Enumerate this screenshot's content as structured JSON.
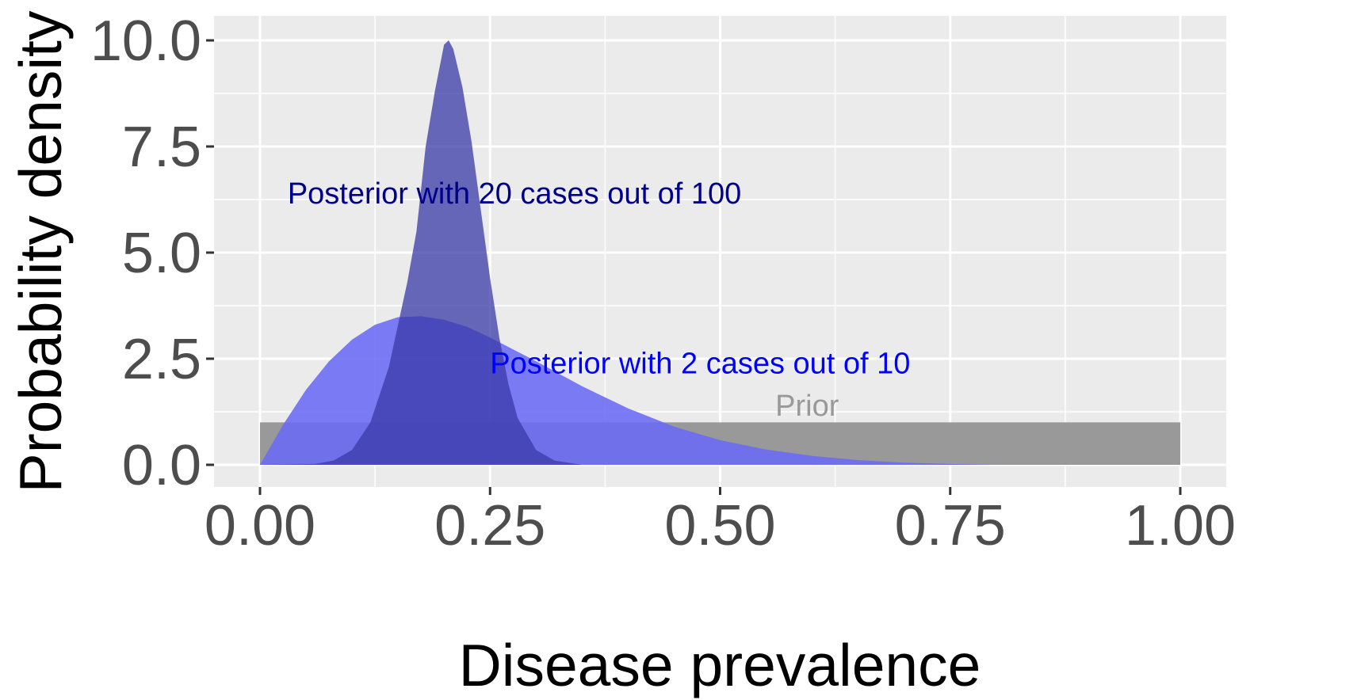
{
  "chart_data": {
    "type": "area",
    "xlabel": "Disease prevalence",
    "ylabel": "Probability density",
    "xlim": [
      0,
      1
    ],
    "ylim": [
      0,
      10
    ],
    "x_ticks": [
      "0.00",
      "0.25",
      "0.50",
      "0.75",
      "1.00"
    ],
    "y_ticks": [
      "0.0",
      "2.5",
      "5.0",
      "7.5",
      "10.0"
    ],
    "grid": true,
    "background": "#ebebeb",
    "series": [
      {
        "label": "Prior",
        "color": "#999999",
        "points": [
          [
            0.0,
            1.0
          ],
          [
            1.0,
            1.0
          ]
        ]
      },
      {
        "label": "Posterior with 2 cases out of 10",
        "color": "#6a6af5",
        "points": [
          [
            0.0,
            0.0
          ],
          [
            0.025,
            0.94
          ],
          [
            0.05,
            1.77
          ],
          [
            0.075,
            2.44
          ],
          [
            0.1,
            2.95
          ],
          [
            0.125,
            3.3
          ],
          [
            0.15,
            3.48
          ],
          [
            0.175,
            3.5
          ],
          [
            0.2,
            3.42
          ],
          [
            0.225,
            3.25
          ],
          [
            0.25,
            3.0
          ],
          [
            0.3,
            2.44
          ],
          [
            0.35,
            1.85
          ],
          [
            0.4,
            1.33
          ],
          [
            0.45,
            0.9
          ],
          [
            0.5,
            0.58
          ],
          [
            0.55,
            0.36
          ],
          [
            0.6,
            0.21
          ],
          [
            0.65,
            0.11
          ],
          [
            0.7,
            0.05
          ],
          [
            0.75,
            0.02
          ],
          [
            0.8,
            0.0
          ],
          [
            1.0,
            0.0
          ]
        ]
      },
      {
        "label": "Posterior with 20 cases out of 100",
        "color": "#3a3aa8",
        "points": [
          [
            0.0,
            0.0
          ],
          [
            0.06,
            0.02
          ],
          [
            0.08,
            0.1
          ],
          [
            0.1,
            0.35
          ],
          [
            0.12,
            1.0
          ],
          [
            0.14,
            2.3
          ],
          [
            0.16,
            4.3
          ],
          [
            0.17,
            5.5
          ],
          [
            0.18,
            7.5
          ],
          [
            0.19,
            8.8
          ],
          [
            0.2,
            9.9
          ],
          [
            0.205,
            10.0
          ],
          [
            0.21,
            9.8
          ],
          [
            0.22,
            8.9
          ],
          [
            0.23,
            7.6
          ],
          [
            0.24,
            6.0
          ],
          [
            0.25,
            4.4
          ],
          [
            0.26,
            3.0
          ],
          [
            0.27,
            1.9
          ],
          [
            0.28,
            1.1
          ],
          [
            0.3,
            0.35
          ],
          [
            0.32,
            0.1
          ],
          [
            0.35,
            0.0
          ],
          [
            1.0,
            0.0
          ]
        ]
      }
    ],
    "annotations": [
      {
        "text": "Posterior with 20 cases out of 100",
        "x": 0.03,
        "y": 6.4,
        "color": "#00008b"
      },
      {
        "text": "Posterior with 2 cases out of 10",
        "x": 0.25,
        "y": 2.4,
        "color": "#0000ff"
      },
      {
        "text": "Prior",
        "x": 0.56,
        "y": 1.4,
        "color": "#999999"
      }
    ]
  }
}
